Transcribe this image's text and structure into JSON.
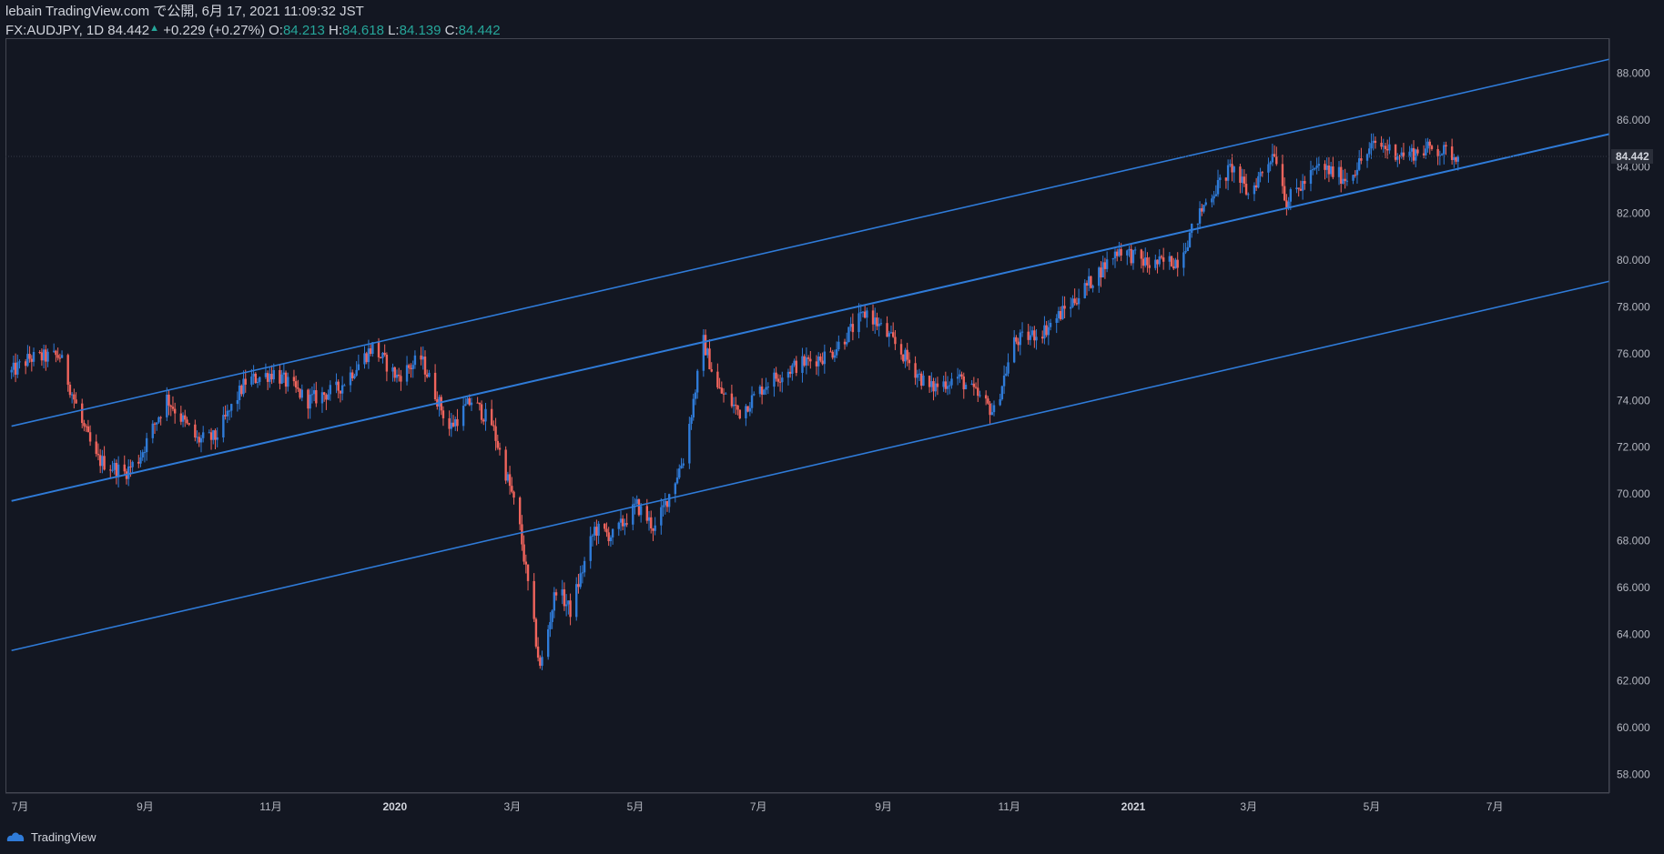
{
  "header": {
    "line1": "lebain TradingView.com で公開, 6月 17, 2021 11:09:32 JST",
    "symbol": "FX:AUDJPY, 1D 84.442",
    "change": "+0.229 (+0.27%)",
    "o_label": "O:",
    "o_value": "84.213",
    "h_label": "H:",
    "h_value": "84.618",
    "l_label": "L:",
    "l_value": "84.139",
    "c_label": "C:",
    "c_value": "84.442"
  },
  "footer": {
    "brand": "TradingView"
  },
  "colors": {
    "background": "#131722",
    "up": "#2f7bd8",
    "down": "#f0645c",
    "channel": "#2f7bd8",
    "axis_border": "#434651"
  },
  "chart_data": {
    "type": "candlestick",
    "symbol": "FX:AUDJPY",
    "interval": "1D",
    "last_price": 84.442,
    "y_ticks": [
      "88.000",
      "86.000",
      "84.000",
      "82.000",
      "80.000",
      "78.000",
      "76.000",
      "74.000",
      "72.000",
      "70.000",
      "68.000",
      "66.000",
      "64.000",
      "62.000",
      "60.000",
      "58.000"
    ],
    "ylim": [
      57.2,
      89.5
    ],
    "x_ticks": [
      {
        "label": "7月",
        "bold": false
      },
      {
        "label": "9月",
        "bold": false
      },
      {
        "label": "11月",
        "bold": false
      },
      {
        "label": "2020",
        "bold": true
      },
      {
        "label": "3月",
        "bold": false
      },
      {
        "label": "5月",
        "bold": false
      },
      {
        "label": "7月",
        "bold": false
      },
      {
        "label": "9月",
        "bold": false
      },
      {
        "label": "11月",
        "bold": false
      },
      {
        "label": "2021",
        "bold": true
      },
      {
        "label": "3月",
        "bold": false
      },
      {
        "label": "5月",
        "bold": false
      },
      {
        "label": "7月",
        "bold": false
      }
    ],
    "price_path": [
      [
        "2019-07-01",
        75.2
      ],
      [
        "2019-07-10",
        75.8
      ],
      [
        "2019-07-25",
        75.9
      ],
      [
        "2019-08-05",
        73.0
      ],
      [
        "2019-08-12",
        71.5
      ],
      [
        "2019-08-26",
        70.9
      ],
      [
        "2019-09-02",
        71.5
      ],
      [
        "2019-09-16",
        74.1
      ],
      [
        "2019-10-01",
        72.3
      ],
      [
        "2019-10-10",
        72.4
      ],
      [
        "2019-10-25",
        74.8
      ],
      [
        "2019-11-08",
        75.2
      ],
      [
        "2019-11-25",
        74.0
      ],
      [
        "2019-12-10",
        74.5
      ],
      [
        "2019-12-27",
        76.3
      ],
      [
        "2020-01-08",
        75.0
      ],
      [
        "2020-01-20",
        75.8
      ],
      [
        "2020-02-03",
        72.8
      ],
      [
        "2020-02-14",
        74.0
      ],
      [
        "2020-02-24",
        73.0
      ],
      [
        "2020-03-05",
        70.0
      ],
      [
        "2020-03-09",
        68.5
      ],
      [
        "2020-03-19",
        62.5
      ],
      [
        "2020-03-27",
        66.0
      ],
      [
        "2020-04-03",
        65.0
      ],
      [
        "2020-04-15",
        68.5
      ],
      [
        "2020-04-24",
        68.2
      ],
      [
        "2020-05-06",
        69.5
      ],
      [
        "2020-05-15",
        68.5
      ],
      [
        "2020-05-29",
        71.5
      ],
      [
        "2020-06-08",
        76.5
      ],
      [
        "2020-06-15",
        74.5
      ],
      [
        "2020-06-26",
        73.5
      ],
      [
        "2020-07-10",
        74.8
      ],
      [
        "2020-07-24",
        75.5
      ],
      [
        "2020-08-10",
        76.0
      ],
      [
        "2020-08-28",
        77.8
      ],
      [
        "2020-09-10",
        76.5
      ],
      [
        "2020-09-28",
        74.5
      ],
      [
        "2020-10-12",
        75.0
      ],
      [
        "2020-10-30",
        73.5
      ],
      [
        "2020-11-09",
        76.5
      ],
      [
        "2020-11-24",
        77.0
      ],
      [
        "2020-12-11",
        78.5
      ],
      [
        "2020-12-31",
        80.5
      ],
      [
        "2021-01-15",
        79.8
      ],
      [
        "2021-01-29",
        80.0
      ],
      [
        "2021-02-12",
        82.5
      ],
      [
        "2021-02-25",
        84.0
      ],
      [
        "2021-03-05",
        82.8
      ],
      [
        "2021-03-18",
        84.7
      ],
      [
        "2021-03-24",
        82.5
      ],
      [
        "2021-04-09",
        84.0
      ],
      [
        "2021-04-23",
        83.5
      ],
      [
        "2021-05-07",
        85.0
      ],
      [
        "2021-05-21",
        84.5
      ],
      [
        "2021-06-04",
        84.8
      ],
      [
        "2021-06-17",
        84.442
      ]
    ],
    "channel_lines": [
      {
        "start": [
          "2019-07-01",
          72.9
        ],
        "end": [
          "2021-08-31",
          88.6
        ]
      },
      {
        "start": [
          "2019-07-01",
          69.7
        ],
        "end": [
          "2021-08-31",
          85.4
        ]
      },
      {
        "start": [
          "2019-07-01",
          63.3
        ],
        "end": [
          "2021-08-31",
          79.1
        ]
      }
    ]
  }
}
